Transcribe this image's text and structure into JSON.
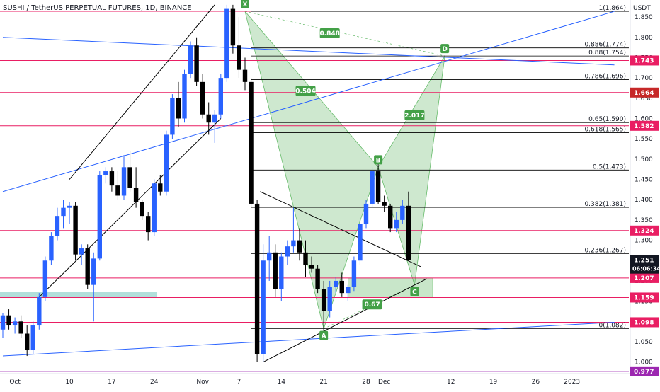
{
  "symbol_title": "SUSHI / TetherUS PERPETUAL FUTURES, 1D, BINANCE",
  "currency_label": "USDT",
  "countdown": "06:06:34",
  "colors": {
    "up": "#2962ff",
    "down": "#000000",
    "resistance": "#e91e63",
    "trendline": "#2962ff",
    "fib": "#000000",
    "harmonic_fill": "#a5d6a7",
    "harmonic_stroke": "#66bb6a",
    "label_green": "#43a047",
    "zone_fill": "#c8e6c9",
    "left_zone_fill": "#b2dfdb",
    "current_price": "#131722",
    "bottom_line": "#9c27b0"
  },
  "chart_data": {
    "type": "candlestick",
    "title": "SUSHI / TetherUS PERPETUAL FUTURES, 1D, BINANCE",
    "ylim": [
      0.975,
      1.885
    ],
    "y_ticks": [
      1.0,
      1.05,
      1.1,
      1.15,
      1.2,
      1.25,
      1.3,
      1.35,
      1.4,
      1.45,
      1.5,
      1.55,
      1.6,
      1.65,
      1.7,
      1.75,
      1.8,
      1.85
    ],
    "y_tick_labels": [
      "1.000",
      "1.050",
      "1.100",
      "1.150",
      "1.200",
      "1.250",
      "1.300",
      "1.350",
      "1.400",
      "1.450",
      "1.500",
      "1.550",
      "1.600",
      "1.650",
      "1.700",
      "1.750",
      "1.800",
      "1.850"
    ],
    "x_ticks": [
      {
        "label": "Oct",
        "day": 0
      },
      {
        "label": "10",
        "day": 9
      },
      {
        "label": "17",
        "day": 16
      },
      {
        "label": "24",
        "day": 23
      },
      {
        "label": "Nov",
        "day": 31
      },
      {
        "label": "7",
        "day": 37
      },
      {
        "label": "14",
        "day": 44
      },
      {
        "label": "21",
        "day": 51
      },
      {
        "label": "28",
        "day": 58
      },
      {
        "label": "Dec",
        "day": 61
      },
      {
        "label": "12",
        "day": 72
      },
      {
        "label": "19",
        "day": 79
      },
      {
        "label": "26",
        "day": 86
      },
      {
        "label": "2023",
        "day": 92
      }
    ],
    "x_range_days": [
      -2,
      99
    ],
    "candles": [
      {
        "d": -2,
        "o": 1.08,
        "h": 1.12,
        "l": 1.06,
        "c": 1.115
      },
      {
        "d": -1,
        "o": 1.115,
        "h": 1.13,
        "l": 1.08,
        "c": 1.09
      },
      {
        "d": 0,
        "o": 1.09,
        "h": 1.11,
        "l": 1.07,
        "c": 1.1
      },
      {
        "d": 1,
        "o": 1.1,
        "h": 1.115,
        "l": 1.06,
        "c": 1.07
      },
      {
        "d": 2,
        "o": 1.07,
        "h": 1.09,
        "l": 1.015,
        "c": 1.03
      },
      {
        "d": 3,
        "o": 1.03,
        "h": 1.1,
        "l": 1.02,
        "c": 1.09
      },
      {
        "d": 4,
        "o": 1.09,
        "h": 1.17,
        "l": 1.08,
        "c": 1.16
      },
      {
        "d": 5,
        "o": 1.16,
        "h": 1.26,
        "l": 1.15,
        "c": 1.25
      },
      {
        "d": 6,
        "o": 1.25,
        "h": 1.32,
        "l": 1.24,
        "c": 1.31
      },
      {
        "d": 7,
        "o": 1.31,
        "h": 1.38,
        "l": 1.3,
        "c": 1.36
      },
      {
        "d": 8,
        "o": 1.36,
        "h": 1.4,
        "l": 1.33,
        "c": 1.38
      },
      {
        "d": 9,
        "o": 1.38,
        "h": 1.395,
        "l": 1.34,
        "c": 1.385
      },
      {
        "d": 10,
        "o": 1.385,
        "h": 1.395,
        "l": 1.25,
        "c": 1.265
      },
      {
        "d": 11,
        "o": 1.265,
        "h": 1.29,
        "l": 1.24,
        "c": 1.28
      },
      {
        "d": 12,
        "o": 1.28,
        "h": 1.29,
        "l": 1.18,
        "c": 1.19
      },
      {
        "d": 13,
        "o": 1.19,
        "h": 1.27,
        "l": 1.1,
        "c": 1.255
      },
      {
        "d": 14,
        "o": 1.255,
        "h": 1.47,
        "l": 1.25,
        "c": 1.46
      },
      {
        "d": 15,
        "o": 1.46,
        "h": 1.48,
        "l": 1.44,
        "c": 1.47
      },
      {
        "d": 16,
        "o": 1.47,
        "h": 1.48,
        "l": 1.42,
        "c": 1.435
      },
      {
        "d": 17,
        "o": 1.435,
        "h": 1.47,
        "l": 1.4,
        "c": 1.41
      },
      {
        "d": 18,
        "o": 1.41,
        "h": 1.51,
        "l": 1.4,
        "c": 1.48
      },
      {
        "d": 19,
        "o": 1.48,
        "h": 1.52,
        "l": 1.42,
        "c": 1.43
      },
      {
        "d": 20,
        "o": 1.43,
        "h": 1.48,
        "l": 1.38,
        "c": 1.395
      },
      {
        "d": 21,
        "o": 1.395,
        "h": 1.4,
        "l": 1.35,
        "c": 1.36
      },
      {
        "d": 22,
        "o": 1.36,
        "h": 1.37,
        "l": 1.3,
        "c": 1.32
      },
      {
        "d": 23,
        "o": 1.32,
        "h": 1.45,
        "l": 1.31,
        "c": 1.44
      },
      {
        "d": 24,
        "o": 1.44,
        "h": 1.46,
        "l": 1.41,
        "c": 1.42
      },
      {
        "d": 25,
        "o": 1.42,
        "h": 1.57,
        "l": 1.41,
        "c": 1.56
      },
      {
        "d": 26,
        "o": 1.56,
        "h": 1.66,
        "l": 1.55,
        "c": 1.65
      },
      {
        "d": 27,
        "o": 1.65,
        "h": 1.69,
        "l": 1.58,
        "c": 1.6
      },
      {
        "d": 28,
        "o": 1.6,
        "h": 1.72,
        "l": 1.59,
        "c": 1.71
      },
      {
        "d": 29,
        "o": 1.71,
        "h": 1.79,
        "l": 1.7,
        "c": 1.78
      },
      {
        "d": 30,
        "o": 1.78,
        "h": 1.8,
        "l": 1.68,
        "c": 1.69
      },
      {
        "d": 31,
        "o": 1.69,
        "h": 1.71,
        "l": 1.6,
        "c": 1.61
      },
      {
        "d": 32,
        "o": 1.61,
        "h": 1.64,
        "l": 1.56,
        "c": 1.59
      },
      {
        "d": 33,
        "o": 1.59,
        "h": 1.62,
        "l": 1.54,
        "c": 1.61
      },
      {
        "d": 34,
        "o": 1.61,
        "h": 1.71,
        "l": 1.6,
        "c": 1.7
      },
      {
        "d": 35,
        "o": 1.7,
        "h": 1.88,
        "l": 1.69,
        "c": 1.87
      },
      {
        "d": 36,
        "o": 1.87,
        "h": 1.88,
        "l": 1.76,
        "c": 1.78
      },
      {
        "d": 37,
        "o": 1.78,
        "h": 1.85,
        "l": 1.7,
        "c": 1.72
      },
      {
        "d": 38,
        "o": 1.72,
        "h": 1.75,
        "l": 1.67,
        "c": 1.69
      },
      {
        "d": 39,
        "o": 1.69,
        "h": 1.7,
        "l": 1.38,
        "c": 1.39
      },
      {
        "d": 40,
        "o": 1.39,
        "h": 1.4,
        "l": 1.0,
        "c": 1.02
      },
      {
        "d": 41,
        "o": 1.02,
        "h": 1.29,
        "l": 1.0,
        "c": 1.25
      },
      {
        "d": 42,
        "o": 1.25,
        "h": 1.31,
        "l": 1.2,
        "c": 1.27
      },
      {
        "d": 43,
        "o": 1.27,
        "h": 1.29,
        "l": 1.16,
        "c": 1.18
      },
      {
        "d": 44,
        "o": 1.18,
        "h": 1.27,
        "l": 1.15,
        "c": 1.26
      },
      {
        "d": 45,
        "o": 1.26,
        "h": 1.3,
        "l": 1.24,
        "c": 1.285
      },
      {
        "d": 46,
        "o": 1.285,
        "h": 1.38,
        "l": 1.27,
        "c": 1.3
      },
      {
        "d": 47,
        "o": 1.3,
        "h": 1.33,
        "l": 1.25,
        "c": 1.27
      },
      {
        "d": 48,
        "o": 1.27,
        "h": 1.3,
        "l": 1.21,
        "c": 1.24
      },
      {
        "d": 49,
        "o": 1.24,
        "h": 1.26,
        "l": 1.22,
        "c": 1.23
      },
      {
        "d": 50,
        "o": 1.23,
        "h": 1.24,
        "l": 1.17,
        "c": 1.18
      },
      {
        "d": 51,
        "o": 1.18,
        "h": 1.2,
        "l": 1.07,
        "c": 1.125
      },
      {
        "d": 52,
        "o": 1.125,
        "h": 1.2,
        "l": 1.11,
        "c": 1.185
      },
      {
        "d": 53,
        "o": 1.185,
        "h": 1.21,
        "l": 1.17,
        "c": 1.2
      },
      {
        "d": 54,
        "o": 1.2,
        "h": 1.22,
        "l": 1.16,
        "c": 1.17
      },
      {
        "d": 55,
        "o": 1.17,
        "h": 1.19,
        "l": 1.15,
        "c": 1.185
      },
      {
        "d": 56,
        "o": 1.185,
        "h": 1.26,
        "l": 1.175,
        "c": 1.25
      },
      {
        "d": 57,
        "o": 1.25,
        "h": 1.35,
        "l": 1.24,
        "c": 1.34
      },
      {
        "d": 58,
        "o": 1.34,
        "h": 1.4,
        "l": 1.33,
        "c": 1.39
      },
      {
        "d": 59,
        "o": 1.39,
        "h": 1.48,
        "l": 1.38,
        "c": 1.47
      },
      {
        "d": 60,
        "o": 1.47,
        "h": 1.49,
        "l": 1.39,
        "c": 1.395
      },
      {
        "d": 61,
        "o": 1.395,
        "h": 1.41,
        "l": 1.37,
        "c": 1.385
      },
      {
        "d": 62,
        "o": 1.385,
        "h": 1.39,
        "l": 1.32,
        "c": 1.33
      },
      {
        "d": 63,
        "o": 1.33,
        "h": 1.37,
        "l": 1.32,
        "c": 1.35
      },
      {
        "d": 64,
        "o": 1.35,
        "h": 1.4,
        "l": 1.34,
        "c": 1.385
      },
      {
        "d": 65,
        "o": 1.385,
        "h": 1.42,
        "l": 1.25,
        "c": 1.251
      }
    ],
    "resistance_levels": [
      {
        "price": 1.864,
        "label": ""
      },
      {
        "price": 1.743,
        "label": "1.743",
        "badge_color": "#e91e63"
      },
      {
        "price": 1.664,
        "label": "1.664",
        "badge_color": "#c62828"
      },
      {
        "price": 1.582,
        "label": "1.582",
        "badge_color": "#e91e63"
      },
      {
        "price": 1.324,
        "label": "1.324",
        "badge_color": "#e91e63"
      },
      {
        "price": 1.207,
        "label": "1.207",
        "badge_color": "#e91e63"
      },
      {
        "price": 1.159,
        "label": "1.159",
        "badge_color": "#e91e63"
      },
      {
        "price": 1.098,
        "label": "1.098",
        "badge_color": "#e91e63"
      }
    ],
    "bottom_level": {
      "price": 0.977,
      "label": "0.977",
      "badge_color": "#9c27b0"
    },
    "current_price": {
      "price": 1.251,
      "label": "1.251"
    },
    "fib_levels": [
      {
        "price": 1.864,
        "label": "1(1.864)"
      },
      {
        "price": 1.774,
        "label": "0.886(1.774)"
      },
      {
        "price": 1.754,
        "label": "0.88(1.754)"
      },
      {
        "price": 1.696,
        "label": "0.786(1.696)"
      },
      {
        "price": 1.59,
        "label": "0.65(1.590)"
      },
      {
        "price": 1.565,
        "label": "0.618(1.565)"
      },
      {
        "price": 1.473,
        "label": "0.5(1.473)"
      },
      {
        "price": 1.381,
        "label": "0.382(1.381)"
      },
      {
        "price": 1.267,
        "label": "0.236(1.267)"
      },
      {
        "price": 1.082,
        "label": "0(1.082)"
      }
    ],
    "harmonic_points": [
      {
        "name": "X",
        "d": 38,
        "price": 1.864
      },
      {
        "name": "A",
        "d": 51,
        "price": 1.082
      },
      {
        "name": "B",
        "d": 60,
        "price": 1.48
      },
      {
        "name": "C",
        "d": 66,
        "price": 1.19
      },
      {
        "name": "D",
        "d": 71,
        "price": 1.754
      }
    ],
    "harmonic_ratios": [
      {
        "label": "0.848",
        "d": 52,
        "price": 1.81
      },
      {
        "label": "0.504",
        "d": 48,
        "price": 1.668
      },
      {
        "label": "2.017",
        "d": 66,
        "price": 1.608
      },
      {
        "label": "0.67",
        "d": 59,
        "price": 1.142
      }
    ]
  }
}
